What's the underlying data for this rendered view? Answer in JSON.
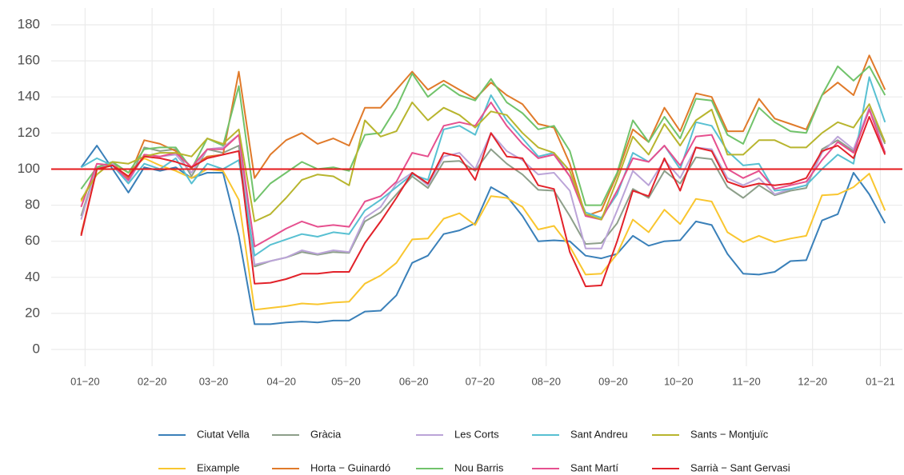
{
  "chart_data": {
    "type": "line",
    "x": [
      0,
      1,
      2,
      3,
      4,
      5,
      6,
      7,
      8,
      9,
      10,
      11,
      12,
      13,
      14,
      15,
      16,
      17,
      18,
      19,
      20,
      21,
      22,
      23,
      24,
      25,
      26,
      27,
      28,
      29,
      30,
      31,
      32,
      33,
      34,
      35,
      36,
      37,
      38,
      39,
      40,
      41,
      42,
      43,
      44,
      45,
      46,
      47,
      48,
      49,
      50,
      51
    ],
    "xlim": [
      -1.9,
      52.1
    ],
    "xticks": [
      {
        "value": 0.25,
        "label": "01−20"
      },
      {
        "value": 4.5,
        "label": "02−20"
      },
      {
        "value": 8.4,
        "label": "03−20"
      },
      {
        "value": 12.7,
        "label": "04−20"
      },
      {
        "value": 16.8,
        "label": "05−20"
      },
      {
        "value": 21.1,
        "label": "06−20"
      },
      {
        "value": 25.3,
        "label": "07−20"
      },
      {
        "value": 29.5,
        "label": "08−20"
      },
      {
        "value": 33.75,
        "label": "09−20"
      },
      {
        "value": 37.9,
        "label": "10−20"
      },
      {
        "value": 42.2,
        "label": "11−20"
      },
      {
        "value": 46.4,
        "label": "12−20"
      },
      {
        "value": 50.7,
        "label": "01−21"
      }
    ],
    "ylim": [
      -9.3,
      189.3
    ],
    "yticks": [
      0,
      20,
      40,
      60,
      80,
      100,
      120,
      140,
      160,
      180
    ],
    "grid": true,
    "legend": "bottom",
    "hline": {
      "value": 100,
      "color": "#e41a1c"
    },
    "series": [
      {
        "name": "Ciutat Vella",
        "color": "#3a80b9",
        "values": [
          101,
          113,
          100,
          87,
          101,
          99,
          101,
          95,
          98,
          98,
          63,
          14,
          14,
          15,
          15.5,
          15,
          16,
          16,
          21,
          21.5,
          30,
          48,
          52,
          64,
          66,
          70,
          90,
          85,
          74,
          60,
          60.5,
          60,
          52,
          50.5,
          53,
          63,
          57.5,
          60,
          60.5,
          71,
          69,
          53,
          42,
          41.5,
          43,
          49,
          49.5,
          71.5,
          75,
          98,
          86,
          70
        ]
      },
      {
        "name": "Eixample",
        "color": "#f9c62f",
        "values": [
          82,
          100,
          103,
          98,
          106,
          102,
          99,
          95,
          100,
          99,
          83,
          22,
          23,
          24,
          25.5,
          25,
          26,
          26.5,
          36.5,
          41,
          48,
          61,
          61.5,
          72.5,
          75.5,
          69,
          85,
          84,
          79,
          66.5,
          68.5,
          57,
          41.5,
          42,
          53,
          72,
          65,
          77.5,
          69.5,
          83.5,
          82,
          65,
          59.5,
          63,
          59.5,
          61.5,
          63,
          85.5,
          86,
          90,
          97.5,
          77
        ]
      },
      {
        "name": "Gràcia",
        "color": "#8d9f8a",
        "values": [
          74,
          101,
          104,
          93,
          112,
          110,
          111,
          96,
          111,
          109,
          113,
          46,
          49,
          51,
          54,
          52.5,
          54,
          53.5,
          71,
          76,
          86,
          96,
          89.5,
          104,
          104.5,
          99,
          111,
          103,
          97,
          88.5,
          88,
          74,
          58.5,
          59,
          70,
          89,
          84,
          99,
          92,
          106.5,
          105.5,
          90,
          84,
          91,
          85.5,
          88,
          89.5,
          111,
          116,
          110,
          133,
          114
        ]
      },
      {
        "name": "Horta − Guinardó",
        "color": "#e07a2a",
        "values": [
          64,
          100,
          103,
          95,
          116,
          114,
          110,
          101,
          107,
          108,
          154,
          95,
          108,
          116,
          120,
          114,
          117,
          113,
          134,
          134,
          144,
          154,
          144,
          149,
          144,
          139,
          148,
          141,
          136,
          125,
          123,
          103,
          74,
          77,
          97,
          122,
          115,
          134,
          121,
          142,
          140,
          121,
          121,
          139,
          128,
          125,
          122,
          141,
          148,
          141,
          163,
          144
        ]
      },
      {
        "name": "Les Corts",
        "color": "#bba4d8",
        "values": [
          72,
          101,
          103,
          93,
          108,
          107,
          108,
          98,
          111,
          112,
          119,
          47,
          49,
          51,
          55,
          53,
          55,
          54,
          73,
          79,
          92,
          98,
          91,
          107,
          109,
          100,
          120,
          110,
          105,
          97,
          98,
          88,
          56,
          56,
          77,
          99,
          91,
          105,
          95,
          112,
          111,
          95,
          91,
          95,
          86,
          89,
          91,
          109,
          118,
          111,
          134,
          109
        ]
      },
      {
        "name": "Nou Barris",
        "color": "#71c36b",
        "values": [
          89,
          101,
          104,
          98,
          111,
          112,
          112,
          100,
          117,
          113,
          146,
          82,
          92,
          98,
          104,
          100,
          101,
          99,
          119,
          120,
          134,
          153,
          140,
          147,
          141,
          138,
          150,
          137,
          131,
          122,
          124,
          110,
          80,
          80,
          98,
          127,
          115,
          129,
          117,
          139,
          138,
          119,
          114,
          134,
          126,
          121,
          120,
          141,
          157,
          149,
          157,
          141
        ]
      },
      {
        "name": "Sant Andreu",
        "color": "#58c0d2",
        "values": [
          101,
          106,
          102,
          92,
          103,
          100,
          106,
          92,
          103,
          100,
          105,
          52,
          58,
          61,
          64,
          62.5,
          65,
          64,
          77,
          83,
          90,
          97,
          94,
          122,
          124,
          119,
          141,
          127,
          117,
          107,
          109,
          96,
          76,
          73,
          86,
          109,
          104,
          113,
          100,
          126,
          124,
          110,
          102,
          103,
          88,
          89,
          91,
          100,
          108,
          103,
          151,
          126
        ]
      },
      {
        "name": "Sant Martí",
        "color": "#e6508f",
        "values": [
          79,
          103,
          102,
          94,
          108,
          107,
          109,
          101,
          111,
          111,
          119,
          57,
          62,
          67,
          71,
          68,
          69,
          68,
          82,
          85,
          93,
          109,
          107,
          124,
          126,
          124,
          137,
          124,
          114,
          106,
          108,
          96,
          74,
          72,
          88,
          106,
          104,
          113,
          102,
          118,
          119,
          100,
          95,
          99,
          89,
          91,
          93,
          105,
          115,
          109,
          133,
          109
        ]
      },
      {
        "name": "Sants − Montjuïc",
        "color": "#b8b52e",
        "values": [
          83,
          97,
          104,
          103,
          107,
          109,
          109,
          107,
          117,
          114,
          122,
          71,
          75,
          84,
          94,
          97,
          96,
          91,
          127,
          118,
          121,
          137,
          127,
          134,
          130,
          123,
          132,
          130,
          120,
          112,
          109,
          99,
          75,
          72,
          94,
          118,
          108,
          125,
          113,
          127,
          133,
          108,
          108,
          116,
          116,
          112,
          112,
          120,
          126,
          123,
          136,
          115
        ]
      },
      {
        "name": "Sarrià − Sant Gervasi",
        "color": "#e2222a",
        "values": [
          63,
          100,
          102,
          96,
          107,
          106,
          104,
          101,
          106,
          108,
          110,
          36.5,
          37,
          39,
          42,
          42,
          43,
          43,
          59,
          71,
          84,
          98,
          92,
          109,
          107,
          94,
          120,
          107,
          106,
          91,
          89,
          54,
          35,
          35.5,
          60,
          88,
          85,
          106,
          88,
          112,
          110,
          93,
          90,
          92,
          91,
          92,
          95,
          110,
          113,
          106,
          129,
          108
        ]
      }
    ]
  }
}
